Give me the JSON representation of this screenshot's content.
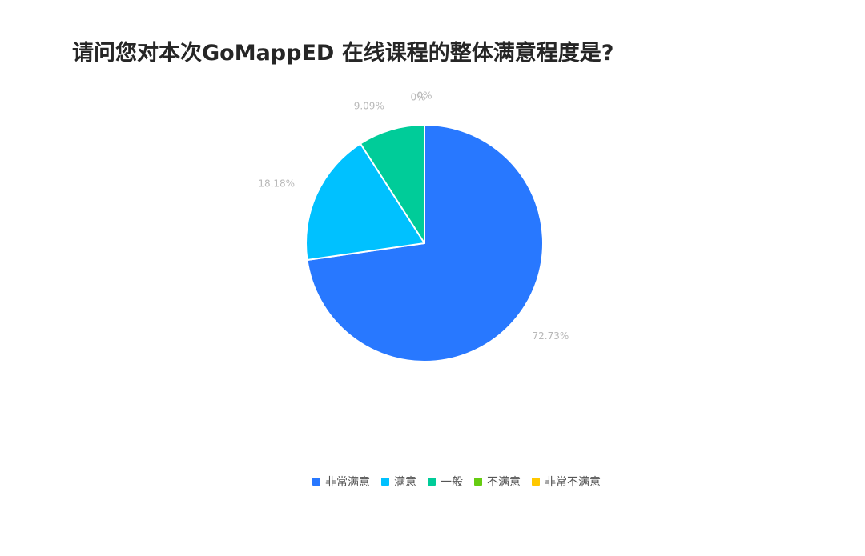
{
  "title": "请问您对本次GoMappED 在线课程的整体满意程度是?",
  "chart_data": {
    "type": "pie",
    "categories": [
      "非常满意",
      "满意",
      "一般",
      "不满意",
      "非常不满意"
    ],
    "values": [
      72.73,
      18.18,
      9.09,
      0,
      0
    ],
    "labels": [
      "72.73%",
      "18.18%",
      "9.09%",
      "0%",
      "0%"
    ],
    "colors": [
      "#2878ff",
      "#00c1ff",
      "#00cc99",
      "#66cc11",
      "#ffc800"
    ],
    "legend_position": "bottom"
  }
}
